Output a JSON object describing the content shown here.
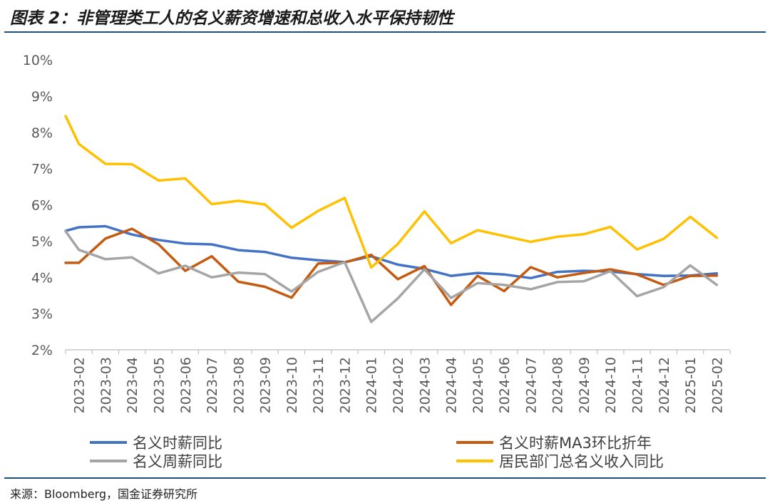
{
  "figure": {
    "title": "图表 2：非管理类工人的名义薪资增速和总收入水平保持韧性",
    "source": "来源：Bloomberg，国金证券研究所"
  },
  "chart_data": {
    "type": "line",
    "categories": [
      "2023-02",
      "2023-03",
      "2023-04",
      "2023-05",
      "2023-06",
      "2023-07",
      "2023-08",
      "2023-09",
      "2023-10",
      "2023-11",
      "2023-12",
      "2024-01",
      "2024-02",
      "2024-03",
      "2024-04",
      "2024-05",
      "2024-06",
      "2024-07",
      "2024-08",
      "2024-09",
      "2024-10",
      "2024-11",
      "2024-12",
      "2025-01",
      "2025-02"
    ],
    "y_ticks": [
      "2%",
      "3%",
      "4%",
      "5%",
      "6%",
      "7%",
      "8%",
      "9%",
      "10%"
    ],
    "ylim": [
      2,
      10
    ],
    "grid": false,
    "legend_position": "bottom",
    "series": [
      {
        "name": "名义时薪同比",
        "color": "#4472c4",
        "x": [
          0,
          0.5,
          1.5,
          2.5,
          3.5,
          4.5,
          5.5,
          6.5,
          7.5,
          8.5,
          9.5,
          10.5,
          11.5,
          12.5,
          13.5,
          14.5,
          15.5,
          16.5,
          17.5,
          18.5,
          19.5,
          20.5,
          21.5,
          22.5,
          23.5,
          24.5
        ],
        "values": [
          5.28,
          5.38,
          5.41,
          5.18,
          5.03,
          4.93,
          4.91,
          4.75,
          4.7,
          4.54,
          4.47,
          4.42,
          4.58,
          4.35,
          4.23,
          4.04,
          4.12,
          4.08,
          3.98,
          4.15,
          4.18,
          4.16,
          4.09,
          4.04,
          4.05,
          4.11
        ]
      },
      {
        "name": "名义时薪MA3环比折年",
        "color": "#c55a11",
        "x": [
          0,
          0.5,
          1.5,
          2.5,
          3.5,
          4.5,
          5.5,
          6.5,
          7.5,
          8.5,
          9.5,
          10.5,
          11.5,
          12.5,
          13.5,
          14.5,
          15.5,
          16.5,
          17.5,
          18.5,
          19.5,
          20.5,
          21.5,
          22.5,
          23.5,
          24.5
        ],
        "values": [
          4.4,
          4.4,
          5.07,
          5.34,
          4.91,
          4.18,
          4.58,
          3.88,
          3.74,
          3.44,
          4.38,
          4.41,
          4.62,
          3.95,
          4.31,
          3.24,
          4.04,
          3.62,
          4.28,
          4.0,
          4.12,
          4.22,
          4.08,
          3.79,
          4.04,
          4.05
        ]
      },
      {
        "name": "名义周薪同比",
        "color": "#a5a5a5",
        "x": [
          0,
          0.5,
          1.5,
          2.5,
          3.5,
          4.5,
          5.5,
          6.5,
          7.5,
          8.5,
          9.5,
          10.5,
          11.5,
          12.5,
          13.5,
          14.5,
          15.5,
          16.5,
          17.5,
          18.5,
          19.5,
          20.5,
          21.5,
          22.5,
          23.5,
          24.5
        ],
        "values": [
          5.27,
          4.76,
          4.5,
          4.55,
          4.11,
          4.32,
          4.0,
          4.13,
          4.09,
          3.61,
          4.15,
          4.42,
          2.77,
          3.42,
          4.22,
          3.43,
          3.84,
          3.79,
          3.67,
          3.87,
          3.89,
          4.17,
          3.48,
          3.73,
          4.33,
          3.79
        ]
      },
      {
        "name": "居民部门总名义收入同比",
        "color": "#ffc000",
        "x": [
          0,
          0.5,
          1.5,
          2.5,
          3.5,
          4.5,
          5.5,
          6.5,
          7.5,
          8.5,
          9.5,
          10.5,
          11.5,
          12.5,
          13.5,
          14.5,
          15.5,
          16.5,
          17.5,
          18.5,
          19.5,
          20.5,
          21.5,
          22.5,
          23.5,
          24.5
        ],
        "values": [
          8.45,
          7.68,
          7.13,
          7.12,
          6.67,
          6.73,
          6.02,
          6.11,
          6.01,
          5.37,
          5.83,
          6.19,
          4.27,
          4.92,
          5.82,
          4.94,
          5.3,
          5.14,
          4.98,
          5.12,
          5.19,
          5.39,
          4.77,
          5.06,
          5.67,
          5.09
        ]
      }
    ]
  }
}
